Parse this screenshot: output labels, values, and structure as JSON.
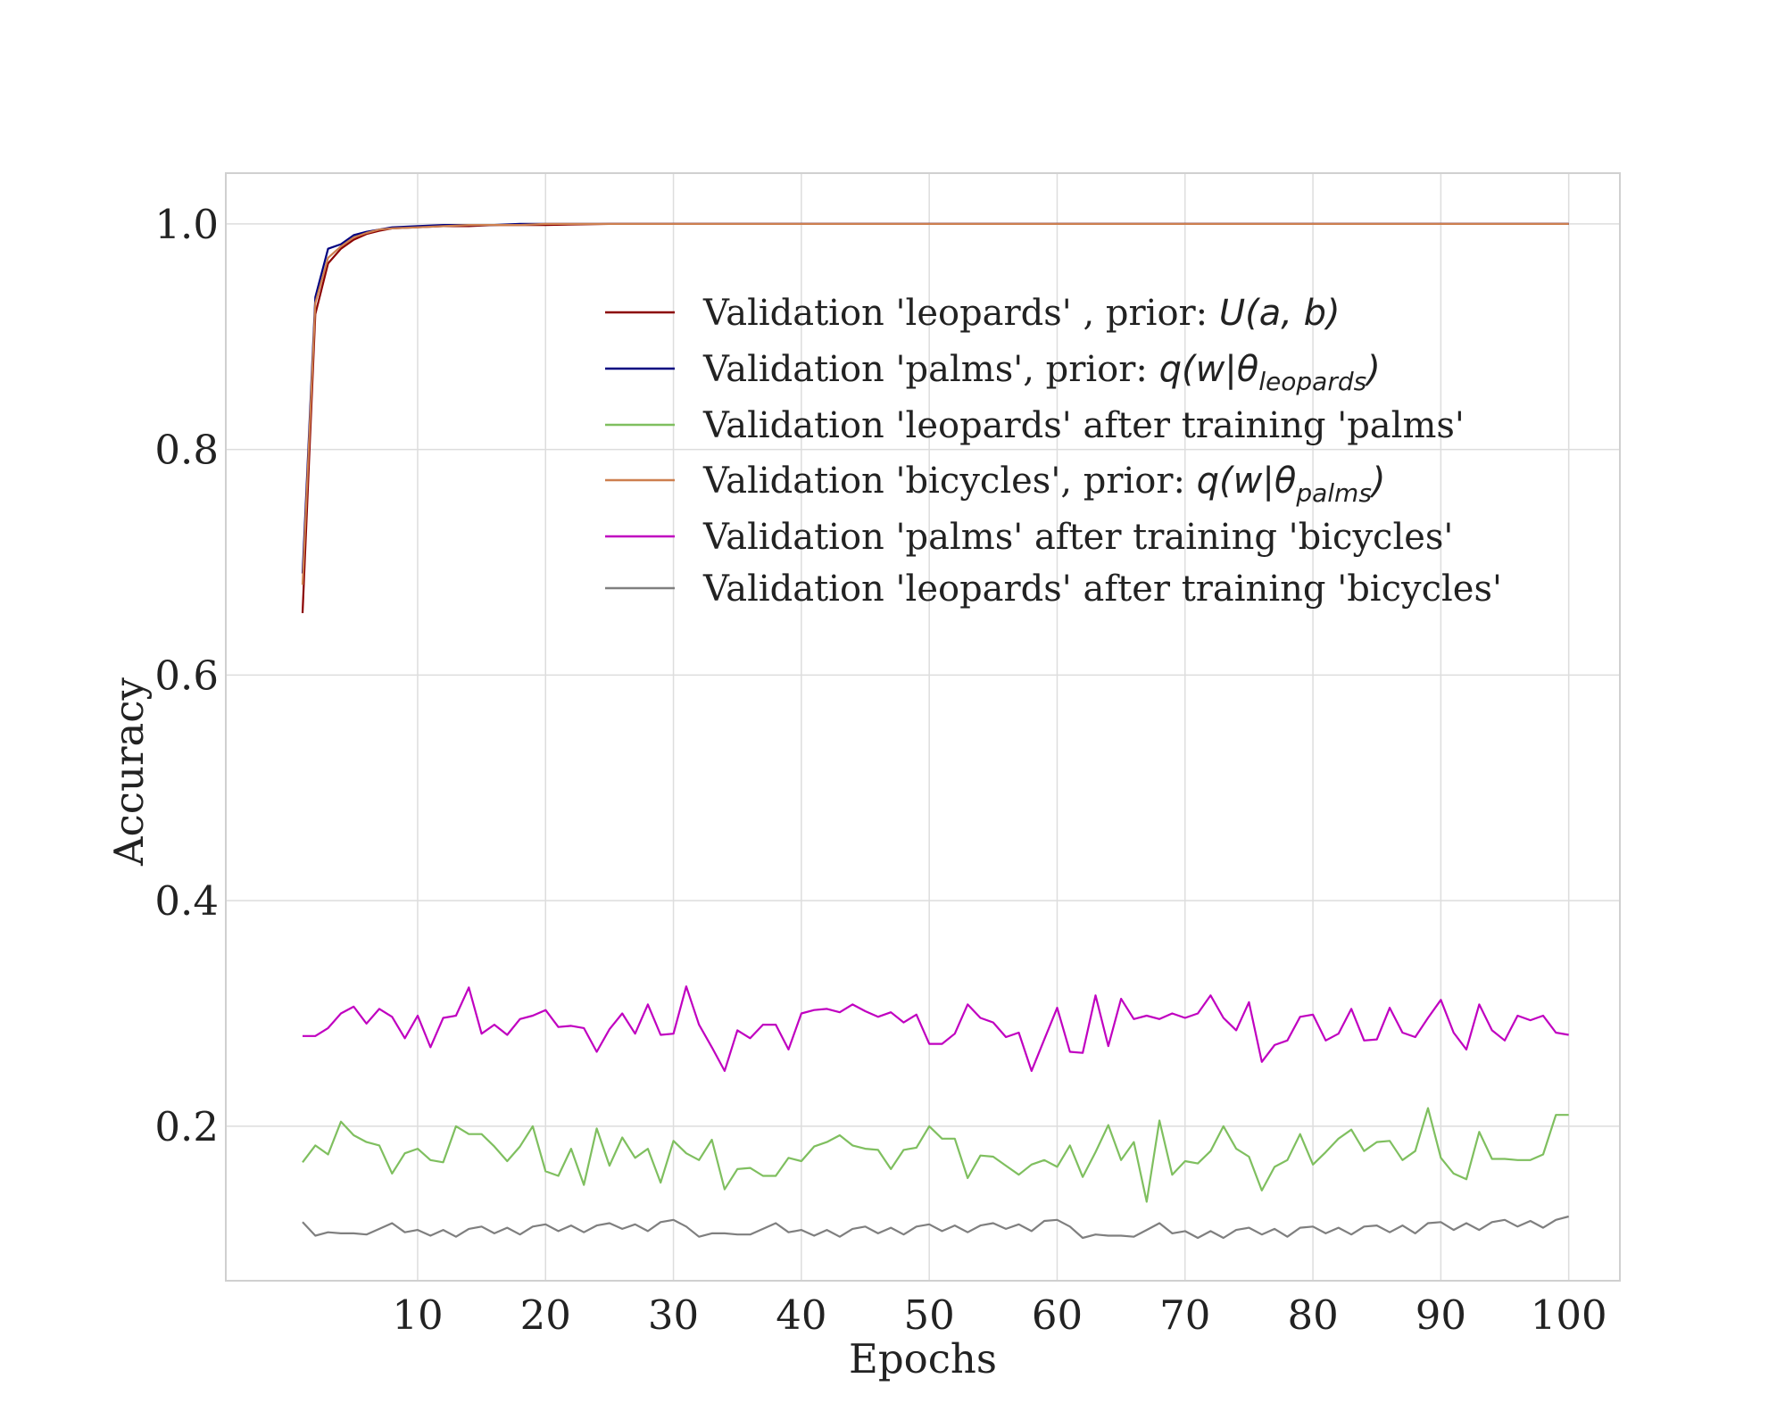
{
  "chart_data": {
    "type": "line",
    "xlabel": "Epochs",
    "ylabel": "Accuracy",
    "xlim": [
      -5,
      104
    ],
    "ylim": [
      0.063,
      1.045
    ],
    "xticks": [
      "10",
      "20",
      "30",
      "40",
      "50",
      "60",
      "70",
      "80",
      "90",
      "100"
    ],
    "yticks": [
      "0.2",
      "0.4",
      "0.6",
      "0.8",
      "1.0"
    ],
    "grid": true,
    "legend_position": "upper-center",
    "series": [
      {
        "name_plain": "Validation 'leopards' , prior: ",
        "name_math": "U(a, b)",
        "name_sub": "",
        "color": "#8b0000",
        "x": [
          1,
          2,
          3,
          4,
          5,
          6,
          7,
          8,
          10,
          12,
          14,
          16,
          18,
          20,
          25,
          30,
          40,
          50,
          60,
          70,
          80,
          90,
          100
        ],
        "y": [
          0.655,
          0.92,
          0.965,
          0.978,
          0.986,
          0.991,
          0.994,
          0.996,
          0.997,
          0.998,
          0.998,
          0.999,
          0.999,
          0.999,
          1.0,
          1.0,
          1.0,
          1.0,
          1.0,
          1.0,
          1.0,
          1.0,
          1.0
        ]
      },
      {
        "name_plain": "Validation 'palms', prior: ",
        "name_math": "q(w|θ",
        "name_sub": "leopards",
        "color": "#000080",
        "x": [
          1,
          2,
          3,
          4,
          5,
          6,
          7,
          8,
          10,
          12,
          14,
          16,
          18,
          20,
          25,
          30,
          40,
          50,
          60,
          70,
          80,
          90,
          100
        ],
        "y": [
          0.69,
          0.935,
          0.978,
          0.982,
          0.99,
          0.993,
          0.995,
          0.997,
          0.998,
          0.999,
          0.999,
          0.999,
          1.0,
          1.0,
          1.0,
          1.0,
          1.0,
          1.0,
          1.0,
          1.0,
          1.0,
          1.0,
          1.0
        ]
      },
      {
        "name_plain": "Validation 'leopards' after training 'palms'",
        "name_math": "",
        "name_sub": "",
        "color": "#7fbf5f",
        "x": [
          1,
          2,
          3,
          4,
          5,
          6,
          7,
          8,
          9,
          10,
          11,
          12,
          13,
          14,
          15,
          16,
          17,
          18,
          19,
          20,
          21,
          22,
          23,
          24,
          25,
          26,
          27,
          28,
          29,
          30,
          31,
          32,
          33,
          34,
          35,
          36,
          37,
          38,
          39,
          40,
          41,
          42,
          43,
          44,
          45,
          46,
          47,
          48,
          49,
          50,
          51,
          52,
          53,
          54,
          55,
          56,
          57,
          58,
          59,
          60,
          61,
          62,
          63,
          64,
          65,
          66,
          67,
          68,
          69,
          70,
          71,
          72,
          73,
          74,
          75,
          76,
          77,
          78,
          79,
          80,
          81,
          82,
          83,
          84,
          85,
          86,
          87,
          88,
          89,
          90,
          91,
          92,
          93,
          94,
          95,
          96,
          97,
          98,
          99,
          100
        ],
        "y": [
          0.168,
          0.183,
          0.175,
          0.204,
          0.192,
          0.186,
          0.183,
          0.158,
          0.176,
          0.18,
          0.17,
          0.168,
          0.2,
          0.193,
          0.193,
          0.182,
          0.169,
          0.182,
          0.2,
          0.16,
          0.156,
          0.18,
          0.148,
          0.198,
          0.165,
          0.19,
          0.172,
          0.18,
          0.15,
          0.187,
          0.176,
          0.17,
          0.188,
          0.144,
          0.162,
          0.163,
          0.156,
          0.156,
          0.172,
          0.169,
          0.182,
          0.186,
          0.192,
          0.183,
          0.18,
          0.179,
          0.162,
          0.179,
          0.181,
          0.2,
          0.189,
          0.189,
          0.154,
          0.174,
          0.173,
          0.165,
          0.157,
          0.166,
          0.17,
          0.164,
          0.183,
          0.155,
          0.177,
          0.201,
          0.17,
          0.186,
          0.133,
          0.205,
          0.157,
          0.169,
          0.167,
          0.178,
          0.2,
          0.18,
          0.173,
          0.143,
          0.164,
          0.17,
          0.193,
          0.166,
          0.177,
          0.189,
          0.197,
          0.178,
          0.186,
          0.187,
          0.17,
          0.178,
          0.216,
          0.172,
          0.158,
          0.153,
          0.195,
          0.171,
          0.171,
          0.17,
          0.17,
          0.175,
          0.21,
          0.21
        ]
      },
      {
        "name_plain": "Validation 'bicycles', prior: ",
        "name_math": "q(w|θ",
        "name_sub": "palms",
        "color": "#cd7f4f",
        "x": [
          1,
          2,
          3,
          4,
          5,
          6,
          7,
          8,
          10,
          12,
          14,
          16,
          18,
          20,
          25,
          30,
          40,
          50,
          60,
          70,
          80,
          90,
          100
        ],
        "y": [
          0.68,
          0.93,
          0.97,
          0.98,
          0.988,
          0.992,
          0.995,
          0.996,
          0.997,
          0.998,
          0.999,
          0.999,
          0.999,
          1.0,
          1.0,
          1.0,
          1.0,
          1.0,
          1.0,
          1.0,
          1.0,
          1.0,
          1.0
        ]
      },
      {
        "name_plain": "Validation 'palms' after training 'bicycles'",
        "name_math": "",
        "name_sub": "",
        "color": "#c000c0",
        "x": [
          1,
          2,
          3,
          4,
          5,
          6,
          7,
          8,
          9,
          10,
          11,
          12,
          13,
          14,
          15,
          16,
          17,
          18,
          19,
          20,
          21,
          22,
          23,
          24,
          25,
          26,
          27,
          28,
          29,
          30,
          31,
          32,
          33,
          34,
          35,
          36,
          37,
          38,
          39,
          40,
          41,
          42,
          43,
          44,
          45,
          46,
          47,
          48,
          49,
          50,
          51,
          52,
          53,
          54,
          55,
          56,
          57,
          58,
          59,
          60,
          61,
          62,
          63,
          64,
          65,
          66,
          67,
          68,
          69,
          70,
          71,
          72,
          73,
          74,
          75,
          76,
          77,
          78,
          79,
          80,
          81,
          82,
          83,
          84,
          85,
          86,
          87,
          88,
          89,
          90,
          91,
          92,
          93,
          94,
          95,
          96,
          97,
          98,
          99,
          100
        ],
        "y": [
          0.28,
          0.28,
          0.287,
          0.3,
          0.306,
          0.291,
          0.304,
          0.297,
          0.278,
          0.298,
          0.27,
          0.296,
          0.298,
          0.323,
          0.282,
          0.29,
          0.281,
          0.295,
          0.298,
          0.303,
          0.288,
          0.289,
          0.287,
          0.266,
          0.286,
          0.3,
          0.282,
          0.308,
          0.281,
          0.282,
          0.324,
          0.29,
          0.27,
          0.249,
          0.285,
          0.278,
          0.29,
          0.29,
          0.268,
          0.3,
          0.303,
          0.304,
          0.301,
          0.308,
          0.302,
          0.297,
          0.301,
          0.292,
          0.299,
          0.273,
          0.273,
          0.282,
          0.308,
          0.296,
          0.292,
          0.279,
          0.283,
          0.249,
          0.277,
          0.305,
          0.266,
          0.265,
          0.316,
          0.271,
          0.313,
          0.295,
          0.298,
          0.295,
          0.3,
          0.296,
          0.3,
          0.316,
          0.296,
          0.285,
          0.31,
          0.257,
          0.272,
          0.276,
          0.297,
          0.299,
          0.276,
          0.282,
          0.304,
          0.276,
          0.277,
          0.305,
          0.283,
          0.279,
          0.296,
          0.312,
          0.283,
          0.268,
          0.308,
          0.285,
          0.276,
          0.298,
          0.294,
          0.298,
          0.283,
          0.281
        ]
      },
      {
        "name_plain": "Validation 'leopards' after training 'bicycles'",
        "name_math": "",
        "name_sub": "",
        "color": "#7f7f7f",
        "x": [
          1,
          2,
          3,
          4,
          5,
          6,
          7,
          8,
          9,
          10,
          11,
          12,
          13,
          14,
          15,
          16,
          17,
          18,
          19,
          20,
          21,
          22,
          23,
          24,
          25,
          26,
          27,
          28,
          29,
          30,
          31,
          32,
          33,
          34,
          35,
          36,
          37,
          38,
          39,
          40,
          41,
          42,
          43,
          44,
          45,
          46,
          47,
          48,
          49,
          50,
          51,
          52,
          53,
          54,
          55,
          56,
          57,
          58,
          59,
          60,
          61,
          62,
          63,
          64,
          65,
          66,
          67,
          68,
          69,
          70,
          71,
          72,
          73,
          74,
          75,
          76,
          77,
          78,
          79,
          80,
          81,
          82,
          83,
          84,
          85,
          86,
          87,
          88,
          89,
          90,
          91,
          92,
          93,
          94,
          95,
          96,
          97,
          98,
          99,
          100
        ],
        "y": [
          0.115,
          0.103,
          0.106,
          0.105,
          0.105,
          0.104,
          0.109,
          0.114,
          0.106,
          0.108,
          0.103,
          0.108,
          0.102,
          0.109,
          0.111,
          0.105,
          0.11,
          0.104,
          0.111,
          0.113,
          0.107,
          0.112,
          0.106,
          0.112,
          0.114,
          0.109,
          0.113,
          0.107,
          0.115,
          0.117,
          0.111,
          0.102,
          0.105,
          0.105,
          0.104,
          0.104,
          0.109,
          0.114,
          0.106,
          0.108,
          0.103,
          0.108,
          0.102,
          0.109,
          0.111,
          0.105,
          0.11,
          0.104,
          0.111,
          0.113,
          0.107,
          0.112,
          0.106,
          0.112,
          0.114,
          0.109,
          0.113,
          0.107,
          0.116,
          0.117,
          0.111,
          0.101,
          0.104,
          0.103,
          0.103,
          0.102,
          0.108,
          0.114,
          0.105,
          0.107,
          0.101,
          0.107,
          0.101,
          0.108,
          0.11,
          0.104,
          0.109,
          0.102,
          0.11,
          0.111,
          0.105,
          0.11,
          0.104,
          0.111,
          0.112,
          0.106,
          0.112,
          0.105,
          0.114,
          0.115,
          0.108,
          0.114,
          0.108,
          0.115,
          0.117,
          0.111,
          0.116,
          0.11,
          0.117,
          0.12
        ]
      }
    ]
  }
}
